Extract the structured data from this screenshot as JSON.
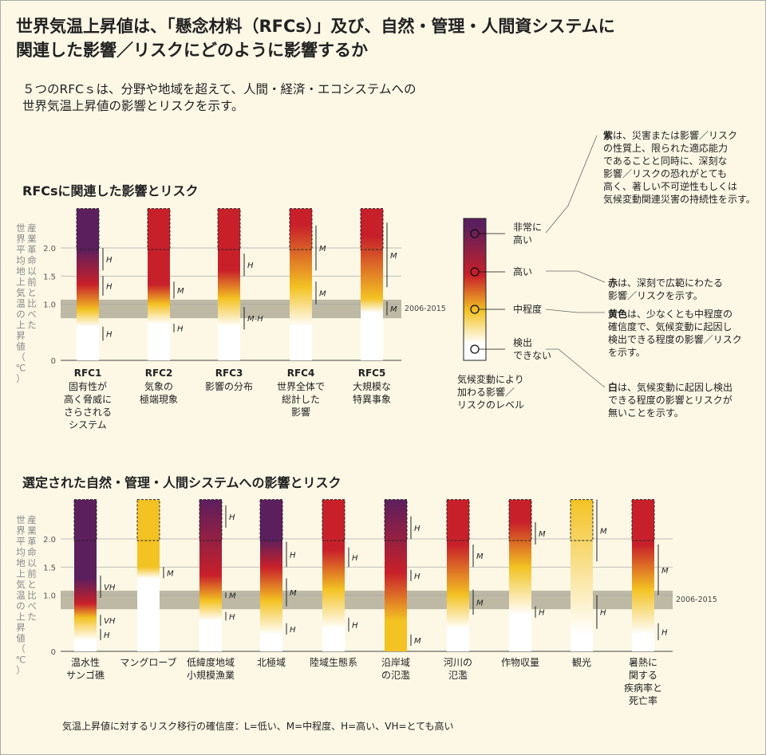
{
  "title_line1": "世界気温上昇値は、「懸念材料（RFCs）」及び、自然・管理・人間資システムに",
  "title_line2": "関連した影響／リスクにどのように影響するか",
  "subtitle_line1": "５つのRFCｓは、分野や地域を超えて、人間・経済・エコシステムへの",
  "subtitle_line2": "世界気温上昇値の影響とリスクを示す。",
  "section1_title": "RFCsに関連した影響とリスク",
  "section2_title": "選定された自然・管理・人間システムへの影響とリスク",
  "y_axis_label": "産業革命以前と比べた世界平均地上気温の上昇値（℃）",
  "y_ticks": [
    "2.0",
    "1.5",
    "1.0",
    "0"
  ],
  "period_label": "2006-2015",
  "legend": {
    "levels": [
      "非常に高い",
      "高い",
      "中程度",
      "検出できない"
    ],
    "caption": [
      "気候変動により",
      "加わる影響／",
      "リスクのレベル"
    ]
  },
  "annotations": {
    "purple": {
      "bold": "紫",
      "lines": [
        "は、災害または影響／リスク",
        "の性質上、限られた適応能力",
        "であることと同時に、深刻な",
        "影響／リスクの恐れがとても",
        "高く、著しい不可逆性もしくは",
        "気候変動関連災害の持続性を示す。"
      ]
    },
    "red": {
      "bold": "赤",
      "lines": [
        "は、深刻で広範にわたる",
        "影響／リスクを示す。"
      ]
    },
    "yellow": {
      "bold": "黄色",
      "lines": [
        "は、少なくとも中程度の",
        "確信度で、気候変動に起因し",
        "検出できる程度の影響／リスク",
        "を示す。"
      ]
    },
    "white": {
      "bold": "白",
      "lines": [
        "は、気候変動に起因し検出",
        "できる程度の影響とリスクが",
        "無いことを示す。"
      ]
    }
  },
  "footnote": "気温上昇値に対するリスク移行の確信度：L=低い、M=中程度、H=高い、VH=とても高い",
  "colors": {
    "white": "#ffffff",
    "yellow": "#f3c223",
    "red": "#c8202a",
    "purple": "#5b1f5e",
    "band": "#bdb9a5",
    "bg": "#fdf8e6"
  },
  "rfc_bars": [
    {
      "code": "RFC1",
      "label": [
        "固有性が",
        "高く脅威に",
        "さらされる",
        "システム"
      ],
      "stops": [
        [
          0.6,
          "white"
        ],
        [
          0.9,
          "yellow"
        ],
        [
          1.35,
          "red"
        ],
        [
          2.0,
          "purple"
        ]
      ],
      "conf": [
        {
          "from": 0.35,
          "to": 0.6,
          "text": "H"
        },
        {
          "from": 1.15,
          "to": 1.5,
          "text": "H"
        },
        {
          "from": 1.6,
          "to": 2.0,
          "text": "H"
        }
      ]
    },
    {
      "code": "RFC2",
      "label": [
        "気象の",
        "極端現象"
      ],
      "stops": [
        [
          0.65,
          "white"
        ],
        [
          1.0,
          "yellow"
        ],
        [
          1.35,
          "red"
        ],
        [
          2.0,
          "red"
        ]
      ],
      "conf": [
        {
          "from": 0.5,
          "to": 0.65,
          "text": "H"
        },
        {
          "from": 1.1,
          "to": 1.4,
          "text": "M"
        }
      ]
    },
    {
      "code": "RFC3",
      "label": [
        "影響の分布"
      ],
      "stops": [
        [
          0.6,
          "white"
        ],
        [
          1.1,
          "yellow"
        ],
        [
          1.6,
          "red"
        ],
        [
          2.0,
          "red"
        ]
      ],
      "conf": [
        {
          "from": 0.55,
          "to": 0.95,
          "text": "M-H"
        },
        {
          "from": 1.5,
          "to": 1.9,
          "text": "H"
        }
      ]
    },
    {
      "code": "RFC4",
      "label": [
        "世界全体で",
        "総計した",
        "影響"
      ],
      "stops": [
        [
          0.6,
          "white"
        ],
        [
          1.3,
          "yellow"
        ],
        [
          2.4,
          "red"
        ],
        [
          2.7,
          "red"
        ]
      ],
      "conf": [
        {
          "from": 1.0,
          "to": 1.4,
          "text": "M"
        },
        {
          "from": 1.6,
          "to": 2.4,
          "text": "M"
        }
      ]
    },
    {
      "code": "RFC5",
      "label": [
        "大規模な",
        "特異事象"
      ],
      "stops": [
        [
          0.85,
          "white"
        ],
        [
          1.1,
          "yellow"
        ],
        [
          2.2,
          "red"
        ],
        [
          2.7,
          "red"
        ]
      ],
      "conf": [
        {
          "from": 0.8,
          "to": 1.05,
          "text": "M"
        },
        {
          "from": 1.3,
          "to": 2.45,
          "text": "M"
        }
      ]
    }
  ],
  "system_bars": [
    {
      "label": [
        "温水性",
        "サンゴ礁"
      ],
      "stops": [
        [
          0.2,
          "white"
        ],
        [
          0.6,
          "yellow"
        ],
        [
          0.85,
          "red"
        ],
        [
          1.3,
          "purple"
        ]
      ],
      "conf": [
        {
          "from": 0.2,
          "to": 0.4,
          "text": "H"
        },
        {
          "from": 0.45,
          "to": 0.65,
          "text": "VH"
        },
        {
          "from": 0.95,
          "to": 1.35,
          "text": "VH"
        }
      ]
    },
    {
      "label": [
        "マングローブ"
      ],
      "stops": [
        [
          1.3,
          "white"
        ],
        [
          1.5,
          "yellow"
        ],
        [
          2.7,
          "yellow"
        ]
      ],
      "conf": [
        {
          "from": 1.3,
          "to": 1.5,
          "text": "M"
        }
      ]
    },
    {
      "label": [
        "低緯度地域",
        "小規模漁業"
      ],
      "stops": [
        [
          0.55,
          "white"
        ],
        [
          0.9,
          "yellow"
        ],
        [
          1.35,
          "red"
        ],
        [
          2.7,
          "purple"
        ]
      ],
      "conf": [
        {
          "from": 0.55,
          "to": 0.7,
          "text": "H"
        },
        {
          "from": 0.95,
          "to": 1.05,
          "text": "M"
        },
        {
          "from": 2.2,
          "to": 2.6,
          "text": "H"
        }
      ]
    },
    {
      "label": [
        "北極域"
      ],
      "stops": [
        [
          0.3,
          "white"
        ],
        [
          0.9,
          "yellow"
        ],
        [
          1.5,
          "red"
        ],
        [
          2.0,
          "purple"
        ]
      ],
      "conf": [
        {
          "from": 0.3,
          "to": 0.5,
          "text": "H"
        },
        {
          "from": 0.8,
          "to": 1.3,
          "text": "M"
        },
        {
          "from": 1.5,
          "to": 1.95,
          "text": "H"
        }
      ]
    },
    {
      "label": [
        "陸域生態系"
      ],
      "stops": [
        [
          0.4,
          "white"
        ],
        [
          1.1,
          "yellow"
        ],
        [
          1.8,
          "red"
        ],
        [
          2.7,
          "red"
        ]
      ],
      "conf": [
        {
          "from": 0.35,
          "to": 0.6,
          "text": "H"
        },
        {
          "from": 1.5,
          "to": 1.85,
          "text": "H"
        }
      ]
    },
    {
      "label": [
        "沿岸域",
        "の氾濫"
      ],
      "stops": [
        [
          0.55,
          "yellow"
        ],
        [
          1.4,
          "red"
        ],
        [
          2.7,
          "purple"
        ]
      ],
      "conf": [
        {
          "from": 0.1,
          "to": 0.3,
          "text": "M"
        },
        {
          "from": 1.25,
          "to": 1.45,
          "text": "H"
        },
        {
          "from": 2.0,
          "to": 2.4,
          "text": "H"
        }
      ]
    },
    {
      "label": [
        "河川の",
        "氾濫"
      ],
      "stops": [
        [
          0.4,
          "white"
        ],
        [
          1.0,
          "yellow"
        ],
        [
          1.9,
          "red"
        ],
        [
          2.7,
          "red"
        ]
      ],
      "conf": [
        {
          "from": 0.65,
          "to": 1.1,
          "text": "M"
        },
        {
          "from": 1.5,
          "to": 1.9,
          "text": "M"
        }
      ]
    },
    {
      "label": [
        "作物収量"
      ],
      "stops": [
        [
          0.65,
          "white"
        ],
        [
          1.5,
          "yellow"
        ],
        [
          2.3,
          "red"
        ],
        [
          2.7,
          "red"
        ]
      ],
      "conf": [
        {
          "from": 0.6,
          "to": 0.8,
          "text": "H"
        },
        {
          "from": 1.9,
          "to": 2.3,
          "text": "M"
        }
      ]
    },
    {
      "label": [
        "観光"
      ],
      "stops": [
        [
          0.3,
          "white"
        ],
        [
          2.7,
          "yellow"
        ]
      ],
      "conf": [
        {
          "from": 0.4,
          "to": 1.0,
          "text": "H"
        },
        {
          "from": 1.6,
          "to": 2.7,
          "text": "M"
        }
      ]
    },
    {
      "label": [
        "暑熱に",
        "関する",
        "疾病率と",
        "死亡率"
      ],
      "stops": [
        [
          0.3,
          "white"
        ],
        [
          1.1,
          "yellow"
        ],
        [
          1.9,
          "red"
        ],
        [
          2.7,
          "red"
        ]
      ],
      "conf": [
        {
          "from": 0.2,
          "to": 0.5,
          "text": "H"
        },
        {
          "from": 1.0,
          "to": 1.9,
          "text": "M"
        }
      ]
    }
  ]
}
